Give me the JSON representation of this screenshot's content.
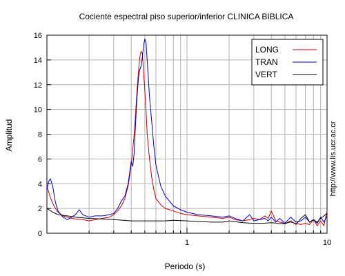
{
  "chart_data": {
    "type": "line",
    "title": "Cociente espectral piso superior/inferior  CLINICA BIBLICA",
    "xlabel": "Periodo (s)",
    "ylabel": "Amplitud",
    "xscale": "log",
    "xlim": [
      0.1,
      10
    ],
    "ylim": [
      0,
      16
    ],
    "x_ticks": [
      1,
      10
    ],
    "x_tick_labels": [
      "1",
      "10"
    ],
    "y_ticks": [
      0,
      2,
      4,
      6,
      8,
      10,
      12,
      14,
      16
    ],
    "y_tick_labels": [
      "0",
      "2",
      "4",
      "6",
      "8",
      "10",
      "12",
      "14",
      "16"
    ],
    "grid": true,
    "legend_position": "top-right",
    "credit": "http://www.lis.ucr.ac.cr",
    "series": [
      {
        "name": "LONG",
        "color": "#cc0000",
        "x": [
          0.1,
          0.105,
          0.11,
          0.115,
          0.12,
          0.13,
          0.14,
          0.15,
          0.16,
          0.18,
          0.2,
          0.22,
          0.25,
          0.28,
          0.3,
          0.32,
          0.34,
          0.36,
          0.38,
          0.4,
          0.42,
          0.44,
          0.45,
          0.46,
          0.47,
          0.48,
          0.49,
          0.5,
          0.51,
          0.52,
          0.54,
          0.56,
          0.58,
          0.6,
          0.65,
          0.7,
          0.8,
          0.9,
          1.0,
          1.2,
          1.5,
          1.8,
          2.0,
          2.2,
          2.5,
          2.8,
          3.0,
          3.3,
          3.6,
          3.8,
          4.0,
          4.3,
          4.6,
          5.0,
          5.5,
          6.0,
          6.5,
          7.0,
          7.5,
          8.0,
          8.5,
          9.0,
          9.5,
          10.0
        ],
        "y": [
          3.8,
          3.0,
          2.4,
          2.0,
          1.7,
          1.4,
          1.3,
          1.2,
          1.15,
          1.1,
          1.0,
          1.1,
          1.2,
          1.3,
          1.5,
          1.8,
          2.2,
          2.8,
          3.8,
          5.5,
          8.0,
          11.5,
          13.0,
          14.2,
          14.7,
          14.5,
          13.0,
          11.5,
          10.0,
          8.0,
          6.0,
          4.5,
          3.5,
          2.8,
          2.3,
          2.0,
          1.8,
          1.6,
          1.5,
          1.4,
          1.3,
          1.2,
          1.3,
          1.1,
          1.0,
          1.1,
          1.2,
          1.1,
          1.4,
          1.2,
          1.8,
          1.0,
          0.9,
          0.8,
          0.9,
          0.8,
          0.7,
          0.8,
          0.7,
          1.1,
          0.6,
          1.0,
          0.6,
          1.8
        ]
      },
      {
        "name": "TRAN",
        "color": "#0000cc",
        "x": [
          0.1,
          0.103,
          0.106,
          0.11,
          0.115,
          0.12,
          0.13,
          0.14,
          0.15,
          0.16,
          0.17,
          0.18,
          0.2,
          0.22,
          0.25,
          0.28,
          0.3,
          0.32,
          0.34,
          0.36,
          0.38,
          0.4,
          0.41,
          0.42,
          0.43,
          0.44,
          0.45,
          0.46,
          0.47,
          0.48,
          0.49,
          0.5,
          0.51,
          0.52,
          0.53,
          0.54,
          0.56,
          0.58,
          0.6,
          0.65,
          0.7,
          0.8,
          0.9,
          1.0,
          1.2,
          1.5,
          1.8,
          2.0,
          2.2,
          2.5,
          2.8,
          3.0,
          3.3,
          3.6,
          3.8,
          4.0,
          4.3,
          4.6,
          5.0,
          5.5,
          6.0,
          6.5,
          7.0,
          7.5,
          8.0,
          8.5,
          9.0,
          9.5,
          10.0
        ],
        "y": [
          3.5,
          4.2,
          4.4,
          3.8,
          2.5,
          1.8,
          1.3,
          1.1,
          1.3,
          1.5,
          1.9,
          1.5,
          1.3,
          1.4,
          1.4,
          1.5,
          1.6,
          2.0,
          2.6,
          3.0,
          4.0,
          5.8,
          5.4,
          6.5,
          9.0,
          11.0,
          12.5,
          13.2,
          13.5,
          14.2,
          15.2,
          15.7,
          15.4,
          14.0,
          12.5,
          11.0,
          9.0,
          7.0,
          5.5,
          3.8,
          3.0,
          2.2,
          1.9,
          1.7,
          1.5,
          1.4,
          1.3,
          1.4,
          1.2,
          1.0,
          1.5,
          1.0,
          1.1,
          1.2,
          1.0,
          1.3,
          0.9,
          1.2,
          0.8,
          1.3,
          0.9,
          1.0,
          1.3,
          0.9,
          1.1,
          0.8,
          1.3,
          0.9,
          1.4
        ]
      },
      {
        "name": "VERT",
        "color": "#000000",
        "x": [
          0.1,
          0.11,
          0.12,
          0.14,
          0.16,
          0.2,
          0.25,
          0.3,
          0.35,
          0.4,
          0.5,
          0.6,
          0.7,
          0.8,
          1.0,
          1.2,
          1.5,
          1.8,
          2.0,
          2.5,
          3.0,
          3.5,
          4.0,
          4.5,
          5.0,
          5.5,
          6.0,
          6.5,
          7.0,
          7.5,
          8.0,
          8.5,
          9.0,
          9.5,
          10.0
        ],
        "y": [
          2.0,
          1.7,
          1.5,
          1.4,
          1.3,
          1.2,
          1.15,
          1.1,
          1.05,
          1.0,
          1.0,
          1.0,
          1.0,
          1.05,
          1.0,
          0.95,
          0.9,
          0.9,
          1.0,
          0.85,
          0.8,
          0.8,
          0.85,
          0.8,
          0.75,
          1.0,
          0.7,
          1.2,
          1.5,
          0.9,
          1.1,
          0.9,
          1.2,
          1.4,
          1.6
        ]
      }
    ]
  }
}
